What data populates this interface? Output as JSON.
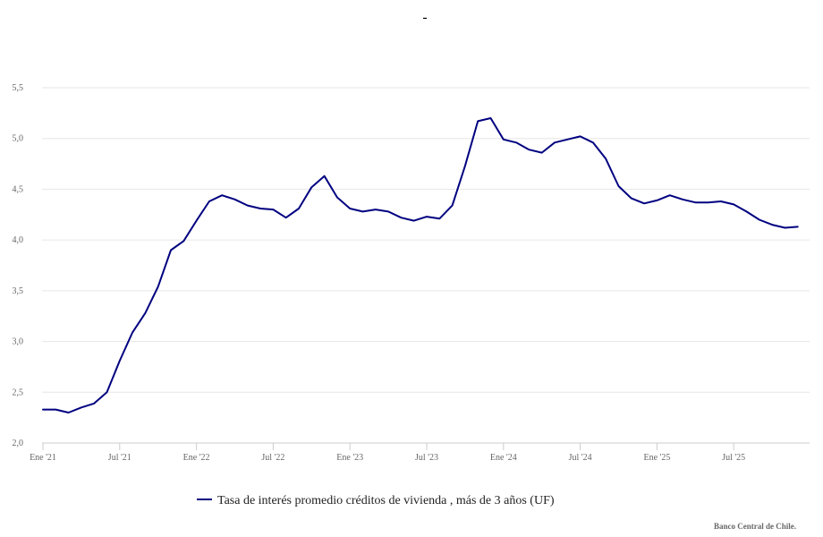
{
  "chart_data": {
    "type": "line",
    "title": "-",
    "credit": "Banco Central de Chile.",
    "ylim": [
      2.0,
      5.5
    ],
    "yticks": [
      {
        "value": 2.0,
        "label": "2,0"
      },
      {
        "value": 2.5,
        "label": "2,5"
      },
      {
        "value": 3.0,
        "label": "3,0"
      },
      {
        "value": 3.5,
        "label": "3,5"
      },
      {
        "value": 4.0,
        "label": "4,0"
      },
      {
        "value": 4.5,
        "label": "4,5"
      },
      {
        "value": 5.0,
        "label": "5,0"
      },
      {
        "value": 5.5,
        "label": "5,5"
      }
    ],
    "xticks": [
      {
        "month": "2021-01",
        "label": "Ene '21"
      },
      {
        "month": "2021-07",
        "label": "Jul '21"
      },
      {
        "month": "2022-01",
        "label": "Ene '22"
      },
      {
        "month": "2022-07",
        "label": "Jul '22"
      },
      {
        "month": "2023-01",
        "label": "Ene '23"
      },
      {
        "month": "2023-07",
        "label": "Jul '23"
      },
      {
        "month": "2024-01",
        "label": "Ene '24"
      },
      {
        "month": "2024-07",
        "label": "Jul '24"
      },
      {
        "month": "2025-01",
        "label": "Ene '25"
      },
      {
        "month": "2025-07",
        "label": "Jul '25"
      }
    ],
    "grid": true,
    "legend_position": "bottom-center",
    "series": [
      {
        "name": "Tasa de interés promedio créditos de vivienda , más de 3 años (UF)",
        "color": "#000080",
        "x": [
          "2021-01",
          "2021-02",
          "2021-03",
          "2021-04",
          "2021-05",
          "2021-06",
          "2021-07",
          "2021-08",
          "2021-09",
          "2021-10",
          "2021-11",
          "2021-12",
          "2022-01",
          "2022-02",
          "2022-03",
          "2022-04",
          "2022-05",
          "2022-06",
          "2022-07",
          "2022-08",
          "2022-09",
          "2022-10",
          "2022-11",
          "2022-12",
          "2023-01",
          "2023-02",
          "2023-03",
          "2023-04",
          "2023-05",
          "2023-06",
          "2023-07",
          "2023-08",
          "2023-09",
          "2023-10",
          "2023-11",
          "2023-12",
          "2024-01",
          "2024-02",
          "2024-03",
          "2024-04",
          "2024-05",
          "2024-06",
          "2024-07",
          "2024-08",
          "2024-09",
          "2024-10",
          "2024-11",
          "2024-12",
          "2025-01",
          "2025-02",
          "2025-03",
          "2025-04",
          "2025-05",
          "2025-06",
          "2025-07",
          "2025-08",
          "2025-09",
          "2025-10",
          "2025-11",
          "2025-12"
        ],
        "values": [
          2.33,
          2.33,
          2.3,
          2.35,
          2.39,
          2.5,
          2.81,
          3.09,
          3.28,
          3.54,
          3.9,
          3.99,
          4.19,
          4.38,
          4.44,
          4.4,
          4.34,
          4.31,
          4.3,
          4.22,
          4.31,
          4.52,
          4.63,
          4.42,
          4.31,
          4.28,
          4.3,
          4.28,
          4.22,
          4.19,
          4.23,
          4.21,
          4.34,
          4.73,
          5.17,
          5.2,
          4.99,
          4.96,
          4.89,
          4.86,
          4.96,
          4.99,
          5.02,
          4.96,
          4.8,
          4.53,
          4.41,
          4.36,
          4.39,
          4.44,
          4.4,
          4.37,
          4.37,
          4.38,
          4.35,
          4.28,
          4.2,
          4.15,
          4.12,
          4.13
        ]
      }
    ]
  }
}
